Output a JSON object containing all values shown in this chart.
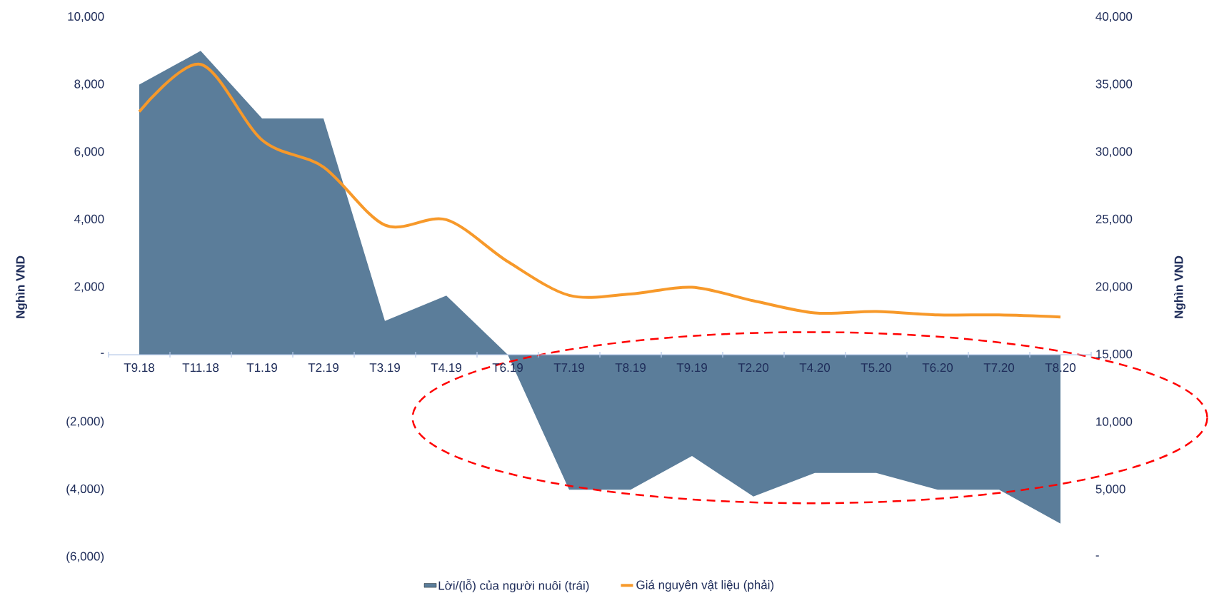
{
  "chart_data": {
    "type": "area",
    "categories": [
      "T9.18",
      "T11.18",
      "T1.19",
      "T2.19",
      "T3.19",
      "T4.19",
      "T6.19",
      "T7.19",
      "T8.19",
      "T9.19",
      "T2.20",
      "T4.20",
      "T5.20",
      "T6.20",
      "T7.20",
      "T8.20"
    ],
    "ylabel": "Nghìn VND",
    "y2label": "Nghìn VND",
    "series": [
      {
        "name": "Lời/(lỗ) của người nuôi (trái)",
        "color": "#5b7d9a",
        "values": [
          8000,
          9000,
          7000,
          7000,
          1000,
          1750,
          0,
          -4000,
          -4000,
          -3000,
          -4200,
          -3500,
          -3500,
          -4000,
          -4000,
          -5000
        ]
      },
      {
        "name": "Giá nguyên vật liệu (phải)",
        "type": "line",
        "axis": "y2",
        "color": "#f7992a",
        "values": [
          33000,
          36500,
          30900,
          28900,
          24600,
          25000,
          21900,
          19400,
          19500,
          20000,
          19000,
          18100,
          18200,
          17950,
          17950,
          17800
        ]
      }
    ],
    "ylim": [
      -6000,
      10000
    ],
    "yticks": [
      {
        "value": -6000,
        "label": "(6,000)"
      },
      {
        "value": -4000,
        "label": "(4,000)"
      },
      {
        "value": -2000,
        "label": "(2,000)"
      },
      {
        "value": 0,
        "label": "-"
      },
      {
        "value": 2000,
        "label": "2,000"
      },
      {
        "value": 4000,
        "label": "4,000"
      },
      {
        "value": 6000,
        "label": "6,000"
      },
      {
        "value": 8000,
        "label": "8,000"
      },
      {
        "value": 10000,
        "label": "10,000"
      }
    ],
    "y2lim": [
      0,
      40000
    ],
    "y2ticks": [
      {
        "value": 0,
        "label": "-"
      },
      {
        "value": 5000,
        "label": "5,000"
      },
      {
        "value": 10000,
        "label": "10,000"
      },
      {
        "value": 15000,
        "label": "15,000"
      },
      {
        "value": 20000,
        "label": "20,000"
      },
      {
        "value": 25000,
        "label": "25,000"
      },
      {
        "value": 30000,
        "label": "30,000"
      },
      {
        "value": 35000,
        "label": "35,000"
      },
      {
        "value": 40000,
        "label": "40,000"
      }
    ],
    "legend": "bottom",
    "grid": false
  }
}
